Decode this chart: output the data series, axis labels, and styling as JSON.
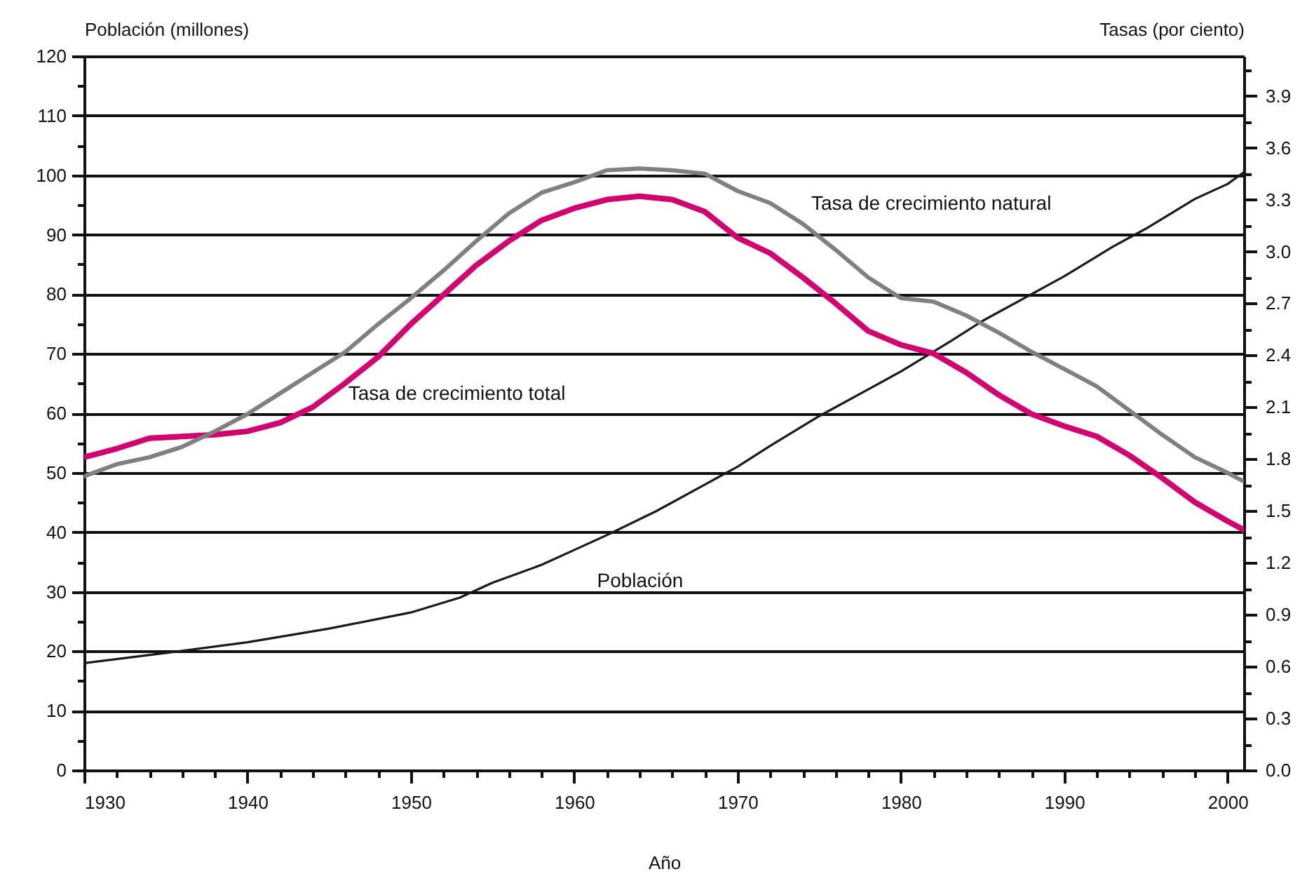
{
  "chart_data": {
    "type": "line",
    "xlabel": "Año",
    "ylabel": "Población (millones)",
    "y2label": "Tasas (por ciento)",
    "xlim": [
      1930,
      2001
    ],
    "xticks": [
      1930,
      {
        "value": 1932,
        "label": null
      },
      {
        "value": 1934,
        "label": null
      },
      {
        "value": 1936,
        "label": null
      },
      {
        "value": 1938,
        "label": null
      },
      1940,
      {
        "value": 1942,
        "label": null
      },
      {
        "value": 1944,
        "label": null
      },
      {
        "value": 1946,
        "label": null
      },
      {
        "value": 1948,
        "label": null
      },
      1950,
      {
        "value": 1952,
        "label": null
      },
      {
        "value": 1954,
        "label": null
      },
      {
        "value": 1956,
        "label": null
      },
      {
        "value": 1958,
        "label": null
      },
      1960,
      {
        "value": 1962,
        "label": null
      },
      {
        "value": 1964,
        "label": null
      },
      {
        "value": 1966,
        "label": null
      },
      {
        "value": 1968,
        "label": null
      },
      1970,
      {
        "value": 1972,
        "label": null
      },
      {
        "value": 1974,
        "label": null
      },
      {
        "value": 1976,
        "label": null
      },
      {
        "value": 1978,
        "label": null
      },
      1980,
      {
        "value": 1982,
        "label": null
      },
      {
        "value": 1984,
        "label": null
      },
      {
        "value": 1986,
        "label": null
      },
      {
        "value": 1988,
        "label": null
      },
      1990,
      {
        "value": 1992,
        "label": null
      },
      {
        "value": 1994,
        "label": null
      },
      {
        "value": 1996,
        "label": null
      },
      {
        "value": 1998,
        "label": null
      },
      2000
    ],
    "ylim": [
      0,
      120
    ],
    "yticks": [
      0,
      {
        "value": 5,
        "label": null
      },
      10,
      {
        "value": 15,
        "label": null
      },
      20,
      {
        "value": 25,
        "label": null
      },
      30,
      {
        "value": 35,
        "label": null
      },
      40,
      {
        "value": 45,
        "label": null
      },
      50,
      {
        "value": 55,
        "label": null
      },
      60,
      {
        "value": 65,
        "label": null
      },
      70,
      {
        "value": 75,
        "label": null
      },
      80,
      {
        "value": 85,
        "label": null
      },
      90,
      {
        "value": 95,
        "label": null
      },
      100,
      {
        "value": 105,
        "label": null
      },
      110,
      {
        "value": 115,
        "label": null
      },
      120
    ],
    "y2lim": [
      0,
      4.13
    ],
    "y2ticks": [
      {
        "value": 0,
        "label": "0.0"
      },
      {
        "value": 0.15,
        "label": null
      },
      0.3,
      {
        "value": 0.45,
        "label": null
      },
      0.6,
      {
        "value": 0.75,
        "label": null
      },
      0.9,
      {
        "value": 1.05,
        "label": null
      },
      1.2,
      {
        "value": 1.35,
        "label": null
      },
      1.5,
      {
        "value": 1.65,
        "label": null
      },
      1.8,
      {
        "value": 1.95,
        "label": null
      },
      2.1,
      {
        "value": 2.25,
        "label": null
      },
      2.4,
      {
        "value": 2.55,
        "label": null
      },
      2.7,
      {
        "value": 2.85,
        "label": null
      },
      {
        "value": 3,
        "label": "3.0"
      },
      {
        "value": 3.15,
        "label": null
      },
      3.3,
      {
        "value": 3.45,
        "label": null
      },
      3.6,
      {
        "value": 3.75,
        "label": null
      },
      3.9,
      {
        "value": 4.05,
        "label": null
      }
    ],
    "grid": "y",
    "series": [
      {
        "name": "Población",
        "color": "#1a1a1a",
        "x": [
          1930,
          1935,
          1940,
          1945,
          1950,
          1953,
          1955,
          1958,
          1960,
          1962,
          1965,
          1968,
          1970,
          1972,
          1975,
          1978,
          1980,
          1983,
          1985,
          1988,
          1990,
          1993,
          1995,
          1998,
          2000,
          2001
        ],
        "values": [
          18,
          19.7,
          21.5,
          23.8,
          26.5,
          29,
          31.5,
          34.5,
          37,
          39.5,
          43.5,
          48,
          51,
          54.5,
          59.5,
          64,
          67,
          72,
          75.5,
          80,
          83,
          88,
          91,
          96,
          98.5,
          100.5
        ]
      },
      {
        "name": "Tasa de crecimiento total",
        "color": "#d6006e",
        "axis": "y2",
        "x": [
          1930,
          1932,
          1934,
          1936,
          1938,
          1940,
          1942,
          1944,
          1946,
          1948,
          1950,
          1952,
          1954,
          1956,
          1958,
          1960,
          1962,
          1964,
          1966,
          1968,
          1970,
          1972,
          1974,
          1976,
          1978,
          1980,
          1982,
          1984,
          1986,
          1988,
          1990,
          1992,
          1994,
          1996,
          1998,
          2000,
          2001
        ],
        "values": [
          1.81,
          1.86,
          1.92,
          1.93,
          1.94,
          1.96,
          2.01,
          2.1,
          2.24,
          2.39,
          2.58,
          2.75,
          2.92,
          3.06,
          3.18,
          3.25,
          3.3,
          3.32,
          3.3,
          3.23,
          3.08,
          2.99,
          2.85,
          2.7,
          2.54,
          2.46,
          2.41,
          2.3,
          2.17,
          2.06,
          1.99,
          1.93,
          1.82,
          1.69,
          1.55,
          1.44,
          1.39
        ]
      },
      {
        "name": "Tasa de crecimiento natural",
        "color": "#808080",
        "axis": "y2",
        "x": [
          1930,
          1932,
          1934,
          1936,
          1938,
          1940,
          1942,
          1944,
          1946,
          1948,
          1950,
          1952,
          1954,
          1956,
          1958,
          1960,
          1962,
          1964,
          1966,
          1968,
          1970,
          1972,
          1974,
          1976,
          1978,
          1980,
          1982,
          1984,
          1986,
          1988,
          1990,
          1992,
          1994,
          1996,
          1998,
          2000,
          2001
        ],
        "values": [
          1.7,
          1.77,
          1.81,
          1.87,
          1.96,
          2.06,
          2.18,
          2.3,
          2.42,
          2.58,
          2.73,
          2.89,
          3.06,
          3.22,
          3.34,
          3.4,
          3.47,
          3.48,
          3.47,
          3.45,
          3.35,
          3.28,
          3.16,
          3.01,
          2.85,
          2.73,
          2.71,
          2.63,
          2.53,
          2.42,
          2.32,
          2.22,
          2.08,
          1.94,
          1.81,
          1.72,
          1.67
        ]
      }
    ]
  }
}
